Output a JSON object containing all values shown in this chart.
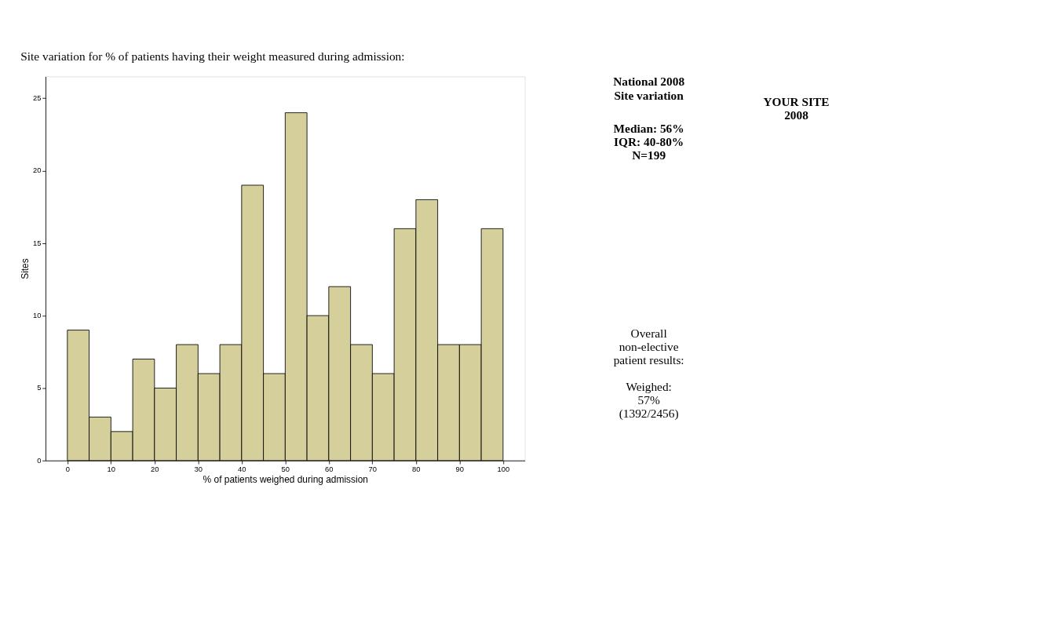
{
  "chart_data": {
    "type": "histogram",
    "title": "Site variation for % of patients having their weight measured during admission:",
    "xlabel": "%  of patients weighed during admission",
    "ylabel": "Sites",
    "bins": [
      0,
      5,
      10,
      15,
      20,
      25,
      30,
      35,
      40,
      45,
      50,
      55,
      60,
      65,
      70,
      75,
      80,
      85,
      90,
      95,
      100
    ],
    "values": [
      9,
      3,
      2,
      7,
      5,
      8,
      6,
      8,
      19,
      6,
      24,
      10,
      12,
      8,
      6,
      16,
      18,
      8,
      8,
      16
    ],
    "color": "#d4cf9b",
    "xlim": [
      -5,
      105
    ],
    "xticks": [
      0,
      10,
      20,
      30,
      40,
      50,
      60,
      70,
      80,
      90,
      100
    ],
    "ylim": [
      0,
      26.5
    ],
    "yticks": [
      0,
      5,
      10,
      15,
      20,
      25
    ],
    "grid": false,
    "annotations": [
      "National 2008\nSite variation",
      "Median: 56%\nIQR: 40-80%\nN=199",
      "YOUR SITE\n2008",
      "Overall\nnon-elective\npatient results:",
      "Weighed:\n57%\n(1392/2456)"
    ]
  }
}
